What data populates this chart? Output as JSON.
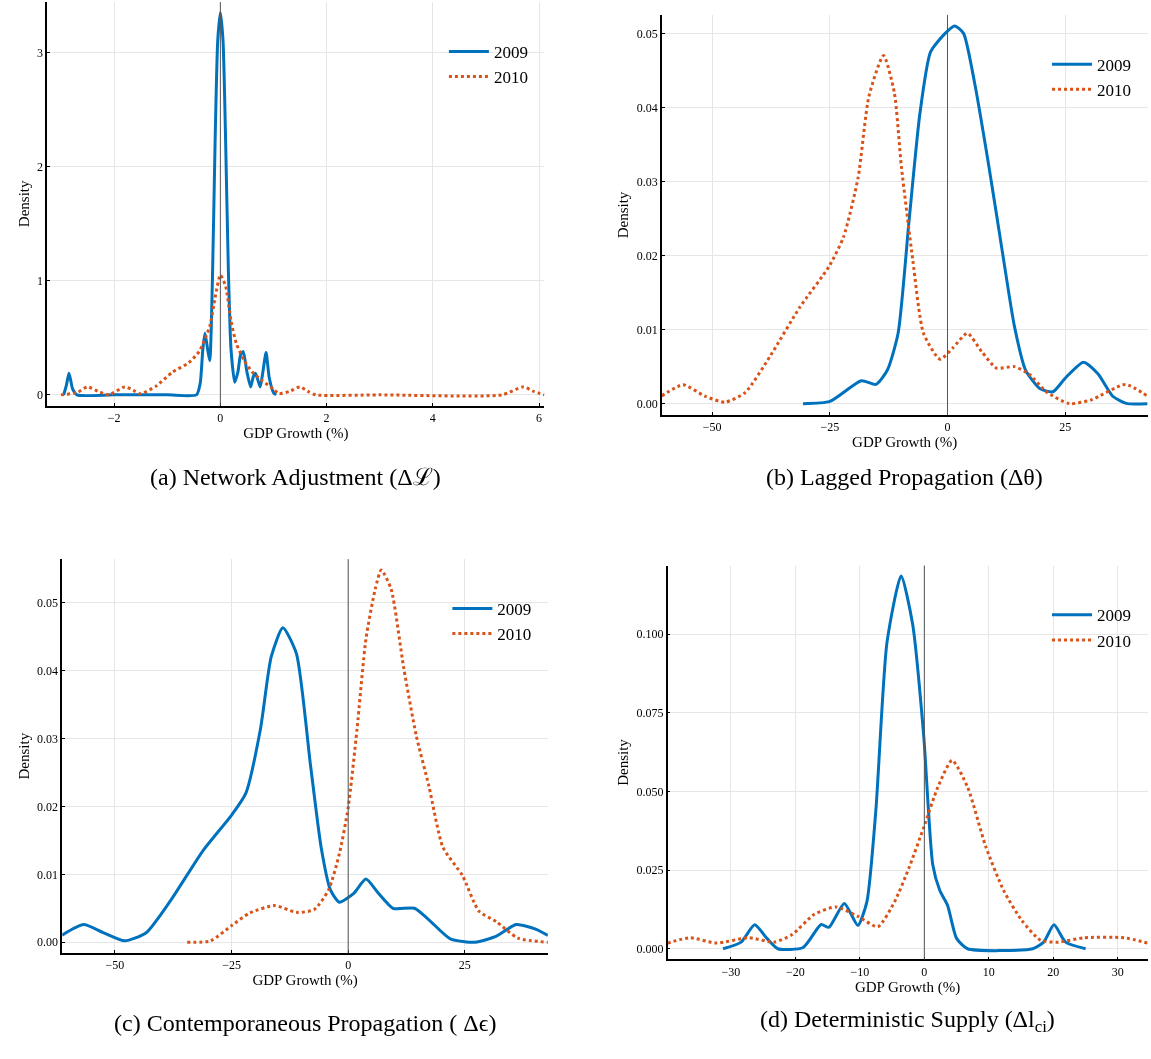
{
  "chart_data": [
    {
      "type": "line",
      "title": "(a) Network Adjustment (Δℒ)",
      "xlabel": "GDP Growth (%)",
      "ylabel": "Density",
      "legend": "top right",
      "grid": true,
      "xlim": [
        -3.26,
        6.1
      ],
      "xticks": [
        {
          "value": -2,
          "label": "−2"
        },
        0,
        2,
        4,
        6
      ],
      "ylim": [
        -0.094,
        3.44
      ],
      "yticks": [
        0,
        1,
        2,
        3
      ],
      "ref_lines": [
        {
          "axis": "x",
          "value": 0,
          "color": "#555555"
        }
      ],
      "series": [
        {
          "name": "2009",
          "color": "#0072bd",
          "line_style": "solid",
          "x": [
            -2.95,
            -2.9,
            -2.85,
            -2.78,
            -2.7,
            -2.0,
            -1.0,
            -0.45,
            -0.38,
            -0.33,
            -0.29,
            -0.24,
            -0.2,
            -0.15,
            -0.1,
            -0.05,
            0,
            0.05,
            0.1,
            0.15,
            0.2,
            0.27,
            0.33,
            0.38,
            0.43,
            0.5,
            0.57,
            0.62,
            0.66,
            0.7,
            0.75,
            0.8,
            0.86,
            0.92,
            1.0,
            1.05
          ],
          "values": [
            0,
            0.08,
            0.19,
            0.05,
            0,
            0,
            0,
            0,
            0.1,
            0.4,
            0.54,
            0.4,
            0.3,
            1.0,
            2.2,
            3.1,
            3.35,
            3.1,
            2.2,
            1.1,
            0.4,
            0.11,
            0.2,
            0.35,
            0.38,
            0.2,
            0.07,
            0.16,
            0.19,
            0.14,
            0.07,
            0.2,
            0.37,
            0.15,
            0.02,
            0
          ]
        },
        {
          "name": "2010",
          "color": "#d95319",
          "line_style": "dotted",
          "x": [
            -3.0,
            -2.7,
            -2.5,
            -2.3,
            -2.1,
            -1.8,
            -1.6,
            -1.5,
            -1.2,
            -0.9,
            -0.6,
            -0.4,
            -0.2,
            -0.1,
            0,
            0.1,
            0.2,
            0.3,
            0.45,
            0.6,
            0.8,
            1.0,
            1.1,
            1.3,
            1.5,
            1.65,
            1.8,
            3,
            5.3,
            5.7,
            5.9,
            6.1
          ],
          "values": [
            0,
            0.02,
            0.07,
            0.03,
            0,
            0.07,
            0.03,
            0.01,
            0.08,
            0.2,
            0.28,
            0.38,
            0.6,
            0.85,
            1.05,
            0.95,
            0.65,
            0.45,
            0.3,
            0.2,
            0.12,
            0.05,
            0.01,
            0.03,
            0.07,
            0.03,
            0,
            0,
            0,
            0.07,
            0.03,
            0
          ]
        }
      ]
    },
    {
      "type": "line",
      "title": "(b) Lagged Propagation (Δθ)",
      "xlabel": "GDP Growth (%)",
      "ylabel": "Density",
      "legend": "top right",
      "grid": true,
      "xlim": [
        -60.7,
        42.5
      ],
      "xticks": [
        {
          "value": -50,
          "label": "−50"
        },
        {
          "value": -25,
          "label": "−25"
        },
        0,
        25
      ],
      "ylim": [
        -0.00155,
        0.0525
      ],
      "yticks": [
        {
          "value": 0,
          "label": "0.00"
        },
        0.01,
        0.02,
        0.03,
        0.04,
        0.05
      ],
      "ref_lines": [
        {
          "axis": "x",
          "value": 0,
          "color": "#555555"
        }
      ],
      "series": [
        {
          "name": "2009",
          "color": "#0072bd",
          "line_style": "solid",
          "x": [
            -30.7,
            -25,
            -18.3,
            -15.2,
            -12.8,
            -10.5,
            -8.2,
            -5.9,
            -3.6,
            -0.5,
            1.5,
            3.4,
            5.7,
            8.8,
            11.9,
            14.2,
            16.6,
            19.7,
            22.4,
            25.1,
            28.9,
            32,
            35.1,
            38.2,
            42.5
          ],
          "values": [
            0,
            0.0003,
            0.0031,
            0.0026,
            0.0045,
            0.0095,
            0.0245,
            0.039,
            0.0475,
            0.05,
            0.051,
            0.05,
            0.0435,
            0.032,
            0.0195,
            0.0105,
            0.0045,
            0.002,
            0.0016,
            0.0035,
            0.0056,
            0.004,
            0.001,
            0,
            0
          ]
        },
        {
          "name": "2010",
          "color": "#d95319",
          "line_style": "dotted",
          "x": [
            -60.7,
            -56.2,
            -51.5,
            -47.3,
            -43,
            -37.6,
            -31.4,
            -25.2,
            -22.1,
            -19,
            -16.7,
            -13.6,
            -11.3,
            -9.8,
            -7.4,
            -5.1,
            -1.6,
            1.1,
            4.2,
            7.3,
            10.4,
            14.2,
            17.3,
            21.2,
            25.9,
            30.5,
            37.8,
            42.5
          ],
          "values": [
            0.00105,
            0.00255,
            0.001,
            0.0002,
            0.0015,
            0.0065,
            0.013,
            0.0185,
            0.0225,
            0.0305,
            0.0415,
            0.047,
            0.042,
            0.032,
            0.0195,
            0.0095,
            0.006,
            0.0075,
            0.0095,
            0.007,
            0.0048,
            0.005,
            0.004,
            0.0015,
            0,
            0.0005,
            0.0026,
            0.001
          ]
        }
      ]
    },
    {
      "type": "line",
      "title": "(c) Contemporaneous Propagation ( Δϵ)",
      "xlabel": "GDP Growth (%)",
      "ylabel": "Density",
      "legend": "top right",
      "grid": true,
      "xlim": [
        -61.3,
        42.8
      ],
      "xticks": [
        {
          "value": -50,
          "label": "−50"
        },
        {
          "value": -25,
          "label": "−25"
        },
        0,
        25
      ],
      "ylim": [
        -0.0016,
        0.0564
      ],
      "yticks": [
        {
          "value": 0,
          "label": "0.00"
        },
        0.01,
        0.02,
        0.03,
        0.04,
        0.05
      ],
      "ref_lines": [
        {
          "axis": "x",
          "value": 0,
          "color": "#555555"
        }
      ],
      "series": [
        {
          "name": "2009",
          "color": "#0072bd",
          "line_style": "solid",
          "x": [
            -61.3,
            -56.7,
            -52.5,
            -47.9,
            -43.3,
            -38,
            -31.1,
            -24.9,
            -21.9,
            -18.8,
            -16.5,
            -14,
            -11.1,
            -8.1,
            -5.8,
            -3.8,
            -1.9,
            1.2,
            3.8,
            6.5,
            9.6,
            14.2,
            17.3,
            21.9,
            27.2,
            31.8,
            36,
            40.3,
            42.8
          ],
          "values": [
            0.00105,
            0.0026,
            0.0014,
            0.0002,
            0.0014,
            0.0062,
            0.0135,
            0.0188,
            0.022,
            0.0314,
            0.042,
            0.0463,
            0.0425,
            0.0262,
            0.014,
            0.0077,
            0.0059,
            0.0072,
            0.0093,
            0.0072,
            0.005,
            0.005,
            0.0033,
            0.0005,
            0,
            0.0009,
            0.0026,
            0.0019,
            0.001
          ]
        },
        {
          "name": "2010",
          "color": "#d95319",
          "line_style": "dotted",
          "x": [
            -34.5,
            -29.5,
            -24.9,
            -21.1,
            -15.7,
            -11.1,
            -7.3,
            -4.2,
            -1.9,
            0,
            1.9,
            3.8,
            5.8,
            7.1,
            9.2,
            11.9,
            14.6,
            17.3,
            20.3,
            24.5,
            28,
            31.8,
            36.4,
            42.8
          ],
          "values": [
            0,
            0.0002,
            0.0025,
            0.0043,
            0.0054,
            0.0044,
            0.0048,
            0.0077,
            0.013,
            0.0198,
            0.0314,
            0.0446,
            0.052,
            0.0548,
            0.052,
            0.0404,
            0.0304,
            0.023,
            0.014,
            0.0098,
            0.0046,
            0.003,
            0.0006,
            0
          ]
        }
      ]
    },
    {
      "type": "line",
      "title": "(d) Deterministic Supply (Δl$_{ci}$)",
      "xlabel": "GDP Growth (%)",
      "ylabel": "Density",
      "legend": "top right",
      "grid": true,
      "xlim": [
        -39.8,
        34.6
      ],
      "xticks": [
        {
          "value": -30,
          "label": "−30"
        },
        {
          "value": -20,
          "label": "−20"
        },
        {
          "value": -10,
          "label": "−10"
        },
        0,
        10,
        20,
        30
      ],
      "ylim": [
        -0.0034,
        0.1218
      ],
      "yticks": [
        {
          "value": 0,
          "label": "0.000"
        },
        0.025,
        {
          "value": 0.05,
          "label": "0.050"
        },
        0.075,
        {
          "value": 0.1,
          "label": "0.100"
        }
      ],
      "ref_lines": [
        {
          "axis": "x",
          "value": 0,
          "color": "#555555"
        }
      ],
      "series": [
        {
          "name": "2009",
          "color": "#0072bd",
          "line_style": "solid",
          "x": [
            -31.2,
            -28.4,
            -26.3,
            -24.4,
            -22.7,
            -18.8,
            -16,
            -14.8,
            -12.4,
            -10.3,
            -8.9,
            -7.5,
            -5.8,
            -3.6,
            -1.8,
            -0.1,
            1.3,
            2.4,
            3.6,
            5,
            6.7,
            16.8,
            18.5,
            20.1,
            21.9,
            25
          ],
          "values": [
            0,
            0.0021,
            0.0076,
            0.0033,
            0,
            0.0004,
            0.0077,
            0.0068,
            0.0144,
            0.0074,
            0.015,
            0.0444,
            0.0972,
            0.1185,
            0.103,
            0.0678,
            0.0268,
            0.0185,
            0.0138,
            0.0033,
            0,
            0,
            0.0021,
            0.0076,
            0.0021,
            0
          ]
        },
        {
          "name": "2010",
          "color": "#d95319",
          "line_style": "dotted",
          "x": [
            -39.8,
            -36.3,
            -32.3,
            -27.2,
            -23.3,
            -20.5,
            -17.1,
            -13.7,
            -10.3,
            -7.2,
            -4.6,
            -2.4,
            -0.1,
            2.1,
            4.3,
            6.7,
            9.5,
            12.3,
            15.1,
            18,
            20.8,
            24.7,
            31,
            34.6
          ],
          "values": [
            0.0018,
            0.0035,
            0.0018,
            0.0035,
            0.0021,
            0.0045,
            0.0109,
            0.0133,
            0.0103,
            0.007,
            0.015,
            0.0256,
            0.0385,
            0.0514,
            0.0599,
            0.0514,
            0.0326,
            0.0185,
            0.009,
            0.0027,
            0.0021,
            0.0035,
            0.0035,
            0.0018
          ]
        }
      ]
    }
  ]
}
